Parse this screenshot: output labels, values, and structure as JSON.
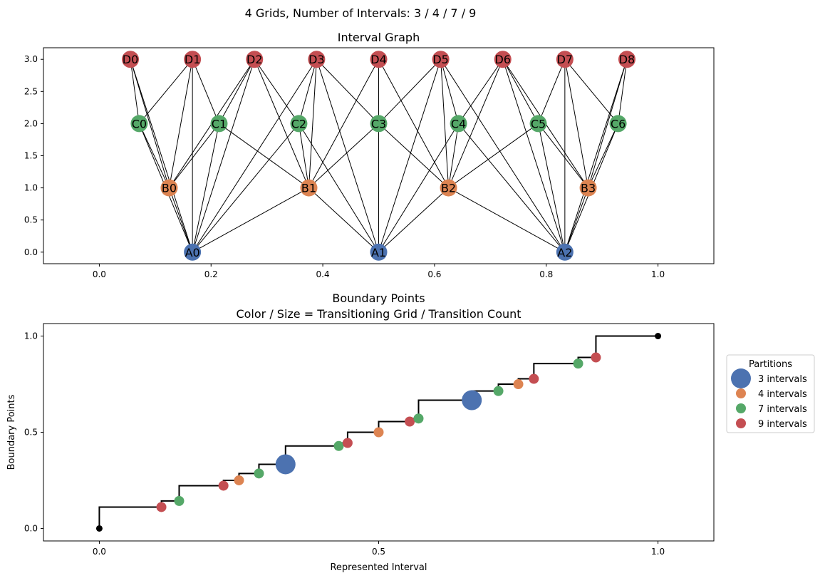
{
  "suptitle": "4 Grids, Number of Intervals: 3 / 4 / 7 / 9",
  "colors": {
    "A": "#4c72b0",
    "B": "#dd8452",
    "C": "#55a868",
    "D": "#c44e52",
    "line": "#000000",
    "endpoint": "#000000"
  },
  "chart_data": [
    {
      "type": "network",
      "title": "Interval Graph",
      "xlim": [
        -0.1,
        1.1
      ],
      "ylim": [
        -0.18,
        3.18
      ],
      "xticks": [
        0.0,
        0.2,
        0.4,
        0.6,
        0.8,
        1.0
      ],
      "xtick_labels": [
        "0.0",
        "0.2",
        "0.4",
        "0.6",
        "0.8",
        "1.0"
      ],
      "yticks": [
        0.0,
        0.5,
        1.0,
        1.5,
        2.0,
        2.5,
        3.0
      ],
      "ytick_labels": [
        "0.0",
        "0.5",
        "1.0",
        "1.5",
        "2.0",
        "2.5",
        "3.0"
      ],
      "nodes": [
        {
          "id": "A0",
          "grid": "A",
          "x": 0.1667,
          "y": 0
        },
        {
          "id": "A1",
          "grid": "A",
          "x": 0.5,
          "y": 0
        },
        {
          "id": "A2",
          "grid": "A",
          "x": 0.8333,
          "y": 0
        },
        {
          "id": "B0",
          "grid": "B",
          "x": 0.125,
          "y": 1
        },
        {
          "id": "B1",
          "grid": "B",
          "x": 0.375,
          "y": 1
        },
        {
          "id": "B2",
          "grid": "B",
          "x": 0.625,
          "y": 1
        },
        {
          "id": "B3",
          "grid": "B",
          "x": 0.875,
          "y": 1
        },
        {
          "id": "C0",
          "grid": "C",
          "x": 0.0714,
          "y": 2
        },
        {
          "id": "C1",
          "grid": "C",
          "x": 0.2143,
          "y": 2
        },
        {
          "id": "C2",
          "grid": "C",
          "x": 0.3571,
          "y": 2
        },
        {
          "id": "C3",
          "grid": "C",
          "x": 0.5,
          "y": 2
        },
        {
          "id": "C4",
          "grid": "C",
          "x": 0.6429,
          "y": 2
        },
        {
          "id": "C5",
          "grid": "C",
          "x": 0.7857,
          "y": 2
        },
        {
          "id": "C6",
          "grid": "C",
          "x": 0.9286,
          "y": 2
        },
        {
          "id": "D0",
          "grid": "D",
          "x": 0.0556,
          "y": 3
        },
        {
          "id": "D1",
          "grid": "D",
          "x": 0.1667,
          "y": 3
        },
        {
          "id": "D2",
          "grid": "D",
          "x": 0.2778,
          "y": 3
        },
        {
          "id": "D3",
          "grid": "D",
          "x": 0.3889,
          "y": 3
        },
        {
          "id": "D4",
          "grid": "D",
          "x": 0.5,
          "y": 3
        },
        {
          "id": "D5",
          "grid": "D",
          "x": 0.6111,
          "y": 3
        },
        {
          "id": "D6",
          "grid": "D",
          "x": 0.7222,
          "y": 3
        },
        {
          "id": "D7",
          "grid": "D",
          "x": 0.8333,
          "y": 3
        },
        {
          "id": "D8",
          "grid": "D",
          "x": 0.9444,
          "y": 3
        }
      ],
      "edges": [
        [
          "A0",
          "B0"
        ],
        [
          "A0",
          "B1"
        ],
        [
          "A0",
          "C0"
        ],
        [
          "A0",
          "C1"
        ],
        [
          "A0",
          "C2"
        ],
        [
          "A0",
          "D0"
        ],
        [
          "A0",
          "D1"
        ],
        [
          "A0",
          "D2"
        ],
        [
          "A0",
          "D3"
        ],
        [
          "A1",
          "B1"
        ],
        [
          "A1",
          "B2"
        ],
        [
          "A1",
          "C2"
        ],
        [
          "A1",
          "C3"
        ],
        [
          "A1",
          "C4"
        ],
        [
          "A1",
          "D3"
        ],
        [
          "A1",
          "D4"
        ],
        [
          "A1",
          "D5"
        ],
        [
          "A2",
          "B2"
        ],
        [
          "A2",
          "B3"
        ],
        [
          "A2",
          "C4"
        ],
        [
          "A2",
          "C5"
        ],
        [
          "A2",
          "C6"
        ],
        [
          "A2",
          "D5"
        ],
        [
          "A2",
          "D6"
        ],
        [
          "A2",
          "D7"
        ],
        [
          "A2",
          "D8"
        ],
        [
          "B0",
          "C0"
        ],
        [
          "B0",
          "C1"
        ],
        [
          "B0",
          "D0"
        ],
        [
          "B0",
          "D1"
        ],
        [
          "B0",
          "D2"
        ],
        [
          "B1",
          "C1"
        ],
        [
          "B1",
          "C2"
        ],
        [
          "B1",
          "C3"
        ],
        [
          "B1",
          "D2"
        ],
        [
          "B1",
          "D3"
        ],
        [
          "B1",
          "D4"
        ],
        [
          "B2",
          "C3"
        ],
        [
          "B2",
          "C4"
        ],
        [
          "B2",
          "C5"
        ],
        [
          "B2",
          "D4"
        ],
        [
          "B2",
          "D5"
        ],
        [
          "B2",
          "D6"
        ],
        [
          "B3",
          "C5"
        ],
        [
          "B3",
          "C6"
        ],
        [
          "B3",
          "D6"
        ],
        [
          "B3",
          "D7"
        ],
        [
          "B3",
          "D8"
        ],
        [
          "C0",
          "D0"
        ],
        [
          "C0",
          "D1"
        ],
        [
          "C1",
          "D1"
        ],
        [
          "C1",
          "D2"
        ],
        [
          "C2",
          "D2"
        ],
        [
          "C2",
          "D3"
        ],
        [
          "C3",
          "D3"
        ],
        [
          "C3",
          "D4"
        ],
        [
          "C3",
          "D5"
        ],
        [
          "C4",
          "D5"
        ],
        [
          "C4",
          "D6"
        ],
        [
          "C5",
          "D6"
        ],
        [
          "C5",
          "D7"
        ],
        [
          "C6",
          "D7"
        ],
        [
          "C6",
          "D8"
        ]
      ]
    },
    {
      "type": "scatter",
      "title": "Boundary Points",
      "subtitle": "Color / Size = Transitioning Grid / Transition Count",
      "xlabel": "Represented Interval",
      "ylabel": "Boundary Points",
      "xlim": [
        -0.1,
        1.1
      ],
      "ylim": [
        -0.065,
        1.065
      ],
      "xticks": [
        0.0,
        0.5,
        1.0
      ],
      "xtick_labels": [
        "0.0",
        "0.5",
        "1.0"
      ],
      "yticks": [
        0.0,
        0.5,
        1.0
      ],
      "ytick_labels": [
        "0.0",
        "0.5",
        "1.0"
      ],
      "step_line": true,
      "endpoints": [
        {
          "x": 0,
          "y": 0
        },
        {
          "x": 1,
          "y": 1
        }
      ],
      "legend": {
        "title": "Partitions",
        "placement": "right-outside",
        "entries": [
          {
            "label": "3 intervals",
            "grid": "A",
            "size": 3
          },
          {
            "label": "4 intervals",
            "grid": "B",
            "size": 1
          },
          {
            "label": "7 intervals",
            "grid": "C",
            "size": 1
          },
          {
            "label": "9 intervals",
            "grid": "D",
            "size": 1
          }
        ]
      },
      "series": [
        {
          "name": "3 intervals",
          "grid": "A",
          "points": [
            {
              "x": 0.3333,
              "y": 0.3333,
              "count": 3
            },
            {
              "x": 0.6667,
              "y": 0.6667,
              "count": 3
            }
          ]
        },
        {
          "name": "4 intervals",
          "grid": "B",
          "points": [
            {
              "x": 0.25,
              "y": 0.25,
              "count": 1
            },
            {
              "x": 0.5,
              "y": 0.5,
              "count": 1
            },
            {
              "x": 0.75,
              "y": 0.75,
              "count": 1
            }
          ]
        },
        {
          "name": "7 intervals",
          "grid": "C",
          "points": [
            {
              "x": 0.1429,
              "y": 0.1429,
              "count": 1
            },
            {
              "x": 0.2857,
              "y": 0.2857,
              "count": 1
            },
            {
              "x": 0.4286,
              "y": 0.4286,
              "count": 1
            },
            {
              "x": 0.5714,
              "y": 0.5714,
              "count": 1
            },
            {
              "x": 0.7143,
              "y": 0.7143,
              "count": 1
            },
            {
              "x": 0.8571,
              "y": 0.8571,
              "count": 1
            }
          ]
        },
        {
          "name": "9 intervals",
          "grid": "D",
          "points": [
            {
              "x": 0.1111,
              "y": 0.1111,
              "count": 1
            },
            {
              "x": 0.2222,
              "y": 0.2222,
              "count": 1
            },
            {
              "x": 0.4444,
              "y": 0.4444,
              "count": 1
            },
            {
              "x": 0.5556,
              "y": 0.5556,
              "count": 1
            },
            {
              "x": 0.7778,
              "y": 0.7778,
              "count": 1
            },
            {
              "x": 0.8889,
              "y": 0.8889,
              "count": 1
            }
          ]
        }
      ]
    }
  ]
}
